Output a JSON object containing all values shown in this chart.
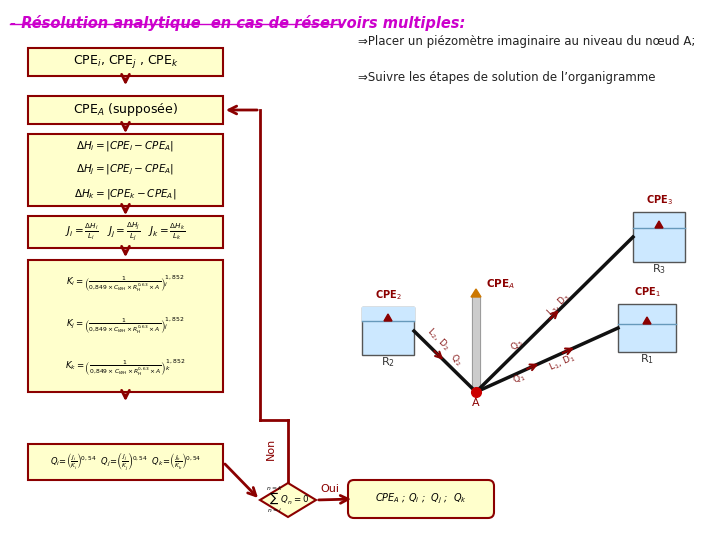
{
  "title": "- Résolution analytique  en cas de réservoirs multiples:",
  "title_color": "#cc00cc",
  "bg_color": "#ffffff",
  "box_bg": "#ffffcc",
  "box_border": "#8b0000",
  "dark_red": "#8b0000",
  "text_color": "#000000",
  "bullet1": "⇒Placer un piézomètre imaginaire au niveau du nœud A;",
  "bullet2": "⇒Suivre les étapes de solution de l’organigramme",
  "box1_text": "CPE$_i$, CPE$_j$ , CPE$_k$",
  "box2_text": "CPE$_A$ (supposée)",
  "oui_text": "Oui",
  "non_text": "Non",
  "reservoir_color": "#cce8ff",
  "pipe_color": "#aaaaaa"
}
